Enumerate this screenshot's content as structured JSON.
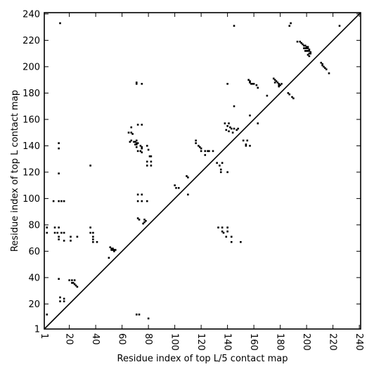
{
  "chart_data": {
    "type": "scatter",
    "subtype": "contact-map",
    "title": "",
    "xlabel": "Residue index of top L/5 contact map",
    "ylabel": "Residue index of top L contact map",
    "xlim": [
      1,
      241
    ],
    "ylim": [
      1,
      241
    ],
    "xticks": [
      1,
      20,
      40,
      60,
      80,
      100,
      120,
      140,
      160,
      180,
      200,
      220,
      240
    ],
    "yticks": [
      1,
      20,
      40,
      60,
      80,
      100,
      120,
      140,
      160,
      180,
      200,
      220,
      240
    ],
    "xtick_rotation": -90,
    "grid": false,
    "diagonal_line": true,
    "marker": "square",
    "marker_color": "#000000",
    "series": [
      {
        "points": [
          [
            13,
            233
          ],
          [
            145,
            231
          ],
          [
            187,
            231
          ],
          [
            188,
            233
          ],
          [
            225,
            231
          ],
          [
            193,
            219
          ],
          [
            195,
            219
          ],
          [
            196,
            218
          ],
          [
            197,
            217
          ],
          [
            198,
            216
          ],
          [
            199,
            216
          ],
          [
            200,
            215
          ],
          [
            201,
            215
          ],
          [
            198,
            214
          ],
          [
            199,
            214
          ],
          [
            200,
            214
          ],
          [
            201,
            214
          ],
          [
            202,
            213
          ],
          [
            199,
            212
          ],
          [
            200,
            212
          ],
          [
            201,
            212
          ],
          [
            202,
            212
          ],
          [
            203,
            211
          ],
          [
            202,
            210
          ],
          [
            203,
            210
          ],
          [
            201,
            209
          ],
          [
            202,
            208
          ],
          [
            211,
            203
          ],
          [
            212,
            202
          ],
          [
            212,
            201
          ],
          [
            213,
            200
          ],
          [
            214,
            199
          ],
          [
            215,
            198
          ],
          [
            217,
            195
          ],
          [
            156,
            190
          ],
          [
            157,
            189
          ],
          [
            157,
            188
          ],
          [
            158,
            187
          ],
          [
            159,
            187
          ],
          [
            160,
            187
          ],
          [
            162,
            186
          ],
          [
            163,
            184
          ],
          [
            175,
            191
          ],
          [
            176,
            190
          ],
          [
            177,
            189
          ],
          [
            176,
            188
          ],
          [
            178,
            188
          ],
          [
            179,
            187
          ],
          [
            179,
            186
          ],
          [
            180,
            186
          ],
          [
            179,
            185
          ],
          [
            181,
            187
          ],
          [
            71,
            188
          ],
          [
            71,
            187
          ],
          [
            75,
            187
          ],
          [
            140,
            187
          ],
          [
            186,
            180
          ],
          [
            187,
            179
          ],
          [
            189,
            177
          ],
          [
            190,
            176
          ],
          [
            170,
            178
          ],
          [
            145,
            170
          ],
          [
            157,
            163
          ],
          [
            163,
            157
          ],
          [
            72,
            156
          ],
          [
            75,
            156
          ],
          [
            138,
            157
          ],
          [
            141,
            157
          ],
          [
            140,
            155
          ],
          [
            142,
            154
          ],
          [
            145,
            153
          ],
          [
            143,
            153
          ],
          [
            148,
            153
          ],
          [
            139,
            152
          ],
          [
            141,
            151
          ],
          [
            144,
            150
          ],
          [
            147,
            152
          ],
          [
            65,
            150
          ],
          [
            67,
            150
          ],
          [
            67,
            154
          ],
          [
            68,
            149
          ],
          [
            67,
            144
          ],
          [
            71,
            144
          ],
          [
            66,
            143
          ],
          [
            69,
            143
          ],
          [
            70,
            143
          ],
          [
            71,
            142
          ],
          [
            72,
            142
          ],
          [
            70,
            141
          ],
          [
            71,
            141
          ],
          [
            74,
            140
          ],
          [
            75,
            139
          ],
          [
            79,
            140
          ],
          [
            71,
            139
          ],
          [
            75,
            138
          ],
          [
            72,
            136
          ],
          [
            74,
            136
          ],
          [
            80,
            137
          ],
          [
            75,
            135
          ],
          [
            81,
            132
          ],
          [
            82,
            132
          ],
          [
            79,
            128
          ],
          [
            79,
            125
          ],
          [
            82,
            125
          ],
          [
            82,
            128
          ],
          [
            152,
            144
          ],
          [
            155,
            144
          ],
          [
            154,
            141
          ],
          [
            154,
            140
          ],
          [
            157,
            140
          ],
          [
            12,
            142
          ],
          [
            12,
            138
          ],
          [
            116,
            144
          ],
          [
            116,
            142
          ],
          [
            118,
            140
          ],
          [
            119,
            139
          ],
          [
            120,
            138
          ],
          [
            120,
            136
          ],
          [
            123,
            136
          ],
          [
            125,
            136
          ],
          [
            126,
            136
          ],
          [
            129,
            136
          ],
          [
            123,
            133
          ],
          [
            132,
            127
          ],
          [
            134,
            125
          ],
          [
            136,
            127
          ],
          [
            135,
            122
          ],
          [
            135,
            120
          ],
          [
            140,
            120
          ],
          [
            36,
            125
          ],
          [
            12,
            119
          ],
          [
            72,
            103
          ],
          [
            75,
            103
          ],
          [
            110,
            103
          ],
          [
            72,
            98
          ],
          [
            75,
            98
          ],
          [
            79,
            98
          ],
          [
            8,
            98
          ],
          [
            12,
            98
          ],
          [
            14,
            98
          ],
          [
            16,
            98
          ],
          [
            100,
            110
          ],
          [
            101,
            108
          ],
          [
            103,
            108
          ],
          [
            109,
            117
          ],
          [
            110,
            116
          ],
          [
            72,
            85
          ],
          [
            73,
            84
          ],
          [
            77,
            84
          ],
          [
            78,
            83
          ],
          [
            77,
            82
          ],
          [
            76,
            81
          ],
          [
            3,
            78
          ],
          [
            9,
            78
          ],
          [
            12,
            78
          ],
          [
            3,
            74
          ],
          [
            9,
            74
          ],
          [
            11,
            74
          ],
          [
            14,
            74
          ],
          [
            16,
            74
          ],
          [
            12,
            71
          ],
          [
            21,
            71
          ],
          [
            26,
            71
          ],
          [
            12,
            69
          ],
          [
            16,
            68
          ],
          [
            21,
            68
          ],
          [
            36,
            78
          ],
          [
            36,
            74
          ],
          [
            38,
            74
          ],
          [
            38,
            71
          ],
          [
            38,
            69
          ],
          [
            38,
            67
          ],
          [
            41,
            67
          ],
          [
            133,
            78
          ],
          [
            136,
            78
          ],
          [
            140,
            78
          ],
          [
            136,
            75
          ],
          [
            137,
            74
          ],
          [
            140,
            75
          ],
          [
            139,
            71
          ],
          [
            143,
            71
          ],
          [
            143,
            67
          ],
          [
            150,
            67
          ],
          [
            51,
            63
          ],
          [
            52,
            62
          ],
          [
            53,
            62
          ],
          [
            52,
            61
          ],
          [
            53,
            61
          ],
          [
            54,
            61
          ],
          [
            55,
            61
          ],
          [
            54,
            60
          ],
          [
            50,
            55
          ],
          [
            12,
            39
          ],
          [
            20,
            38
          ],
          [
            22,
            38
          ],
          [
            24,
            38
          ],
          [
            22,
            36
          ],
          [
            23,
            36
          ],
          [
            24,
            35
          ],
          [
            25,
            34
          ],
          [
            26,
            33
          ],
          [
            13,
            25
          ],
          [
            16,
            24
          ],
          [
            13,
            22
          ],
          [
            16,
            22
          ],
          [
            3,
            12
          ],
          [
            71,
            12
          ],
          [
            73,
            12
          ],
          [
            80,
            9
          ]
        ]
      }
    ]
  }
}
